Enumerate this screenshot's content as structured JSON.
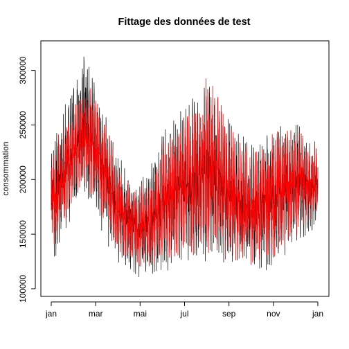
{
  "chart_data": {
    "type": "line",
    "title": "Fittage des données de test",
    "xlabel": "",
    "ylabel": "consommation",
    "x_ticks": [
      "jan",
      "mar",
      "mai",
      "jul",
      "sep",
      "nov",
      "jan"
    ],
    "y_ticks": [
      100000,
      150000,
      200000,
      250000,
      300000
    ],
    "y_tick_labels": [
      "100000",
      "150000",
      "200000",
      "250000",
      "300000"
    ],
    "xlim": [
      "jan",
      "jan"
    ],
    "ylim": [
      93000,
      327000
    ],
    "grid": false,
    "legend": "none",
    "x_unit": "month",
    "envelope": {
      "months": [
        0,
        0.5,
        1,
        1.5,
        2,
        2.5,
        3,
        3.5,
        4,
        4.5,
        5,
        5.5,
        6,
        6.5,
        7,
        7.5,
        8,
        8.5,
        9,
        9.5,
        10,
        10.5,
        11,
        11.5,
        12
      ],
      "observed_low": [
        120000,
        135000,
        175000,
        180000,
        165000,
        140000,
        120000,
        112000,
        108000,
        110000,
        113000,
        115000,
        118000,
        120000,
        122000,
        118000,
        115000,
        112000,
        110000,
        112000,
        115000,
        125000,
        135000,
        150000,
        155000
      ],
      "observed_high": [
        235000,
        265000,
        285000,
        320000,
        295000,
        260000,
        225000,
        210000,
        200000,
        215000,
        245000,
        260000,
        270000,
        280000,
        305000,
        285000,
        255000,
        245000,
        235000,
        240000,
        250000,
        258000,
        255000,
        240000,
        235000
      ],
      "fitted_low": [
        130000,
        145000,
        185000,
        190000,
        175000,
        150000,
        130000,
        122000,
        118000,
        120000,
        123000,
        125000,
        128000,
        130000,
        132000,
        128000,
        125000,
        122000,
        120000,
        122000,
        125000,
        135000,
        145000,
        158000,
        162000
      ],
      "fitted_high": [
        225000,
        255000,
        270000,
        290000,
        280000,
        250000,
        215000,
        200000,
        195000,
        205000,
        235000,
        250000,
        262000,
        272000,
        300000,
        280000,
        250000,
        240000,
        230000,
        235000,
        245000,
        255000,
        252000,
        235000,
        230000
      ]
    },
    "series": [
      {
        "name": "",
        "color": "#000000"
      },
      {
        "name": "",
        "color": "#ff0000"
      }
    ]
  }
}
